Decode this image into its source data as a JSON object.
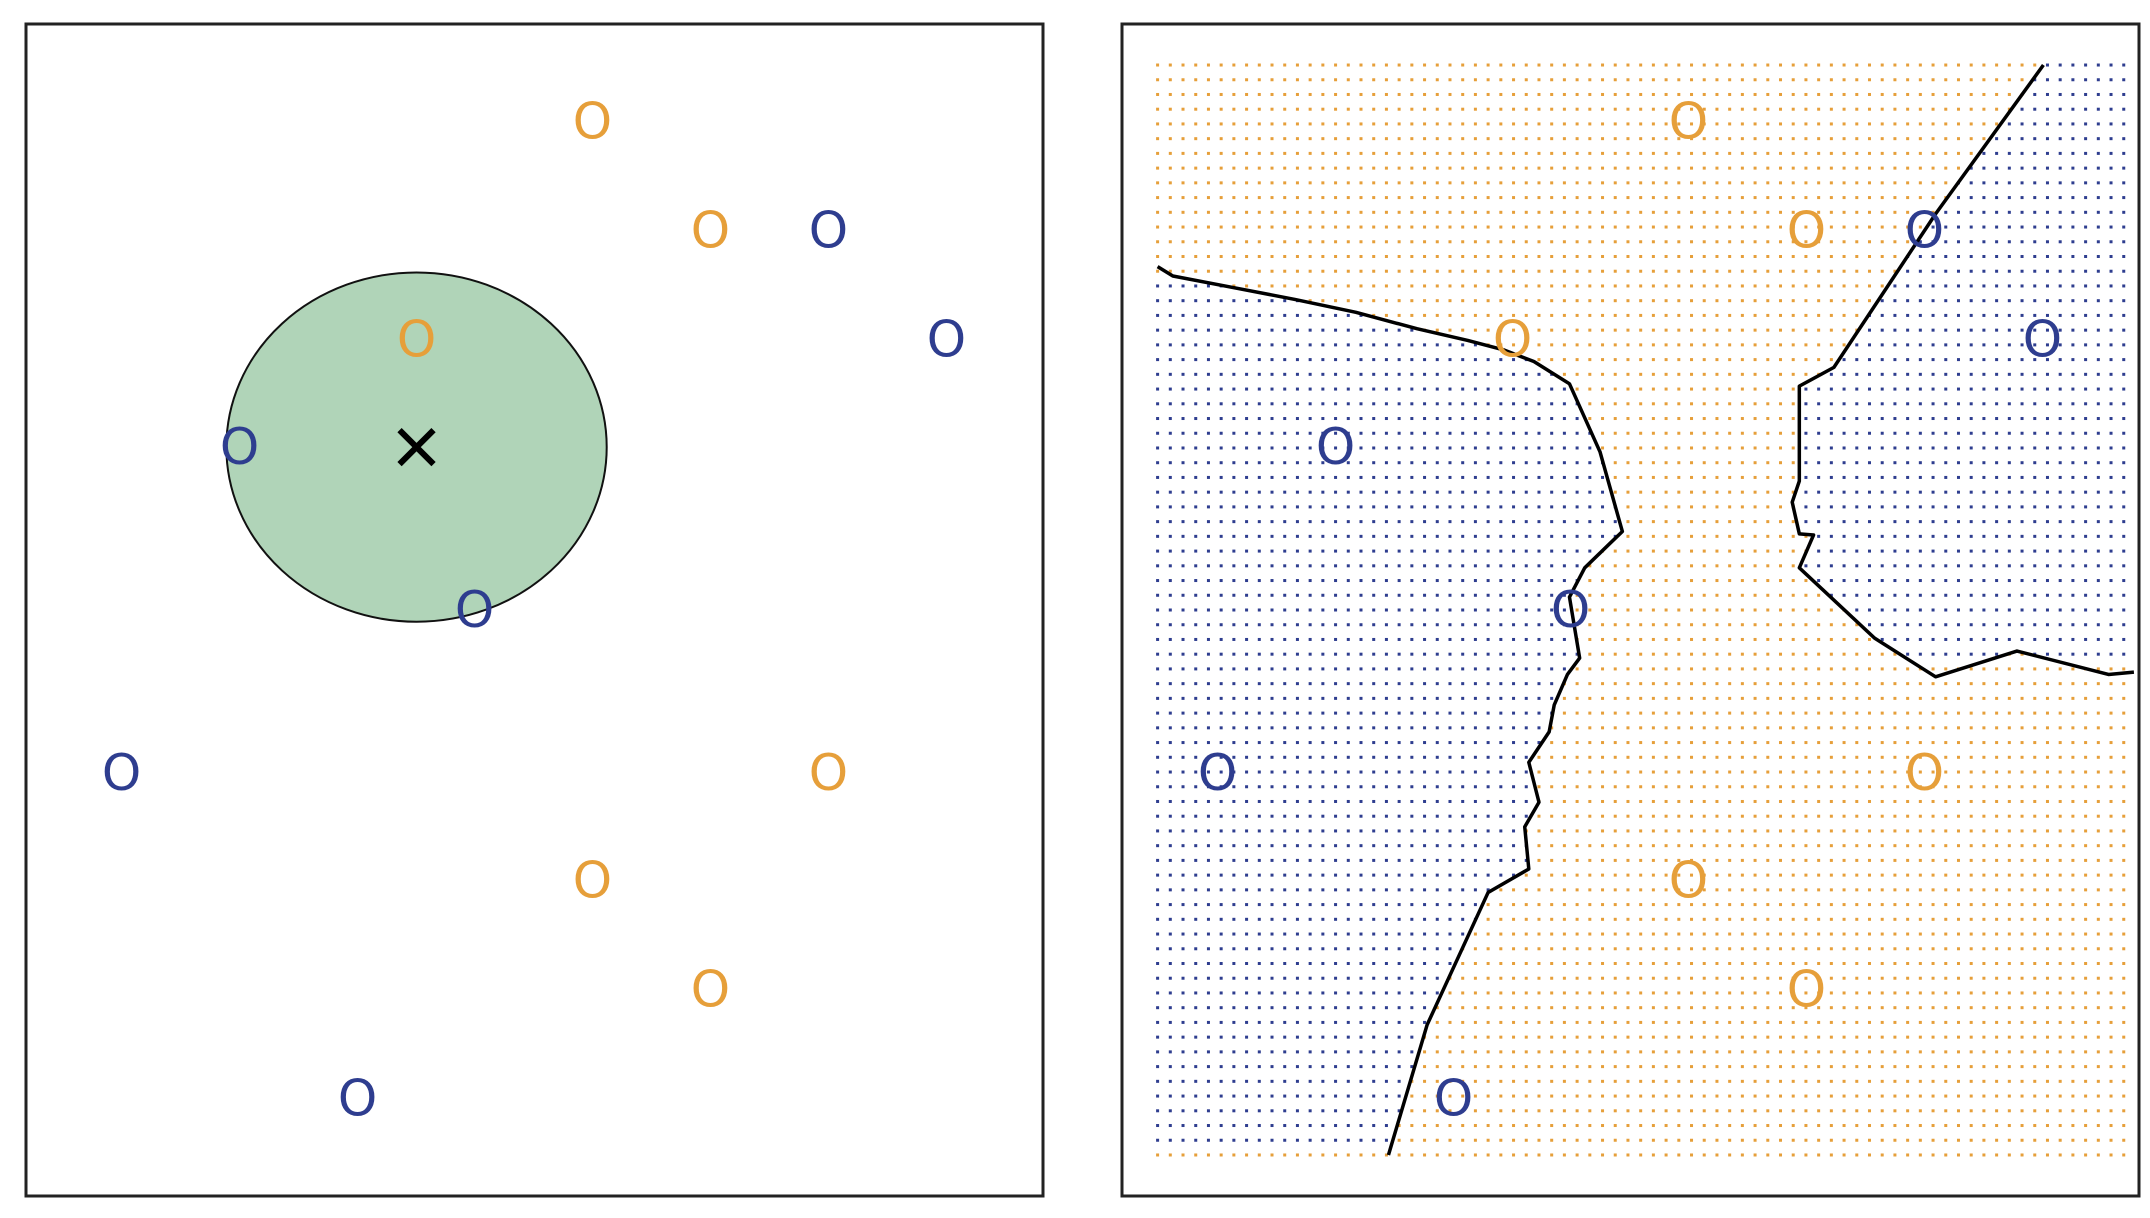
{
  "colors": {
    "orange": "#E69F3A",
    "blue": "#2E3D8F",
    "green_fill": "#B0D4B8",
    "boundary": "#000000"
  },
  "chart_data": [
    {
      "type": "scatter",
      "title": "",
      "xlim": [
        0,
        1
      ],
      "ylim": [
        0,
        1
      ],
      "grid": false,
      "marker_glyph": "O",
      "series": [
        {
          "class": "orange",
          "x": [
            0.557,
            0.673,
            0.384,
            0.789,
            0.557,
            0.673
          ],
          "y": [
            0.917,
            0.824,
            0.731,
            0.361,
            0.269,
            0.176
          ]
        },
        {
          "class": "blue",
          "x": [
            0.789,
            0.905,
            0.21,
            0.441,
            0.094,
            0.326
          ],
          "y": [
            0.824,
            0.731,
            0.639,
            0.5,
            0.361,
            0.083
          ]
        }
      ],
      "test_point": {
        "marker": "×",
        "x": 0.384,
        "y": 0.639
      },
      "neighborhood_circle": {
        "cx": 0.384,
        "cy": 0.639,
        "rx": 0.187,
        "ry": 0.149
      }
    },
    {
      "type": "scatter",
      "title": "",
      "xlim": [
        0,
        1
      ],
      "ylim": [
        0,
        1
      ],
      "grid": false,
      "marker_glyph": "O",
      "series": [
        {
          "class": "orange",
          "x": [
            0.557,
            0.673,
            0.384,
            0.789,
            0.557,
            0.673
          ],
          "y": [
            0.917,
            0.824,
            0.731,
            0.361,
            0.269,
            0.176
          ]
        },
        {
          "class": "blue",
          "x": [
            0.789,
            0.905,
            0.21,
            0.441,
            0.094,
            0.326
          ],
          "y": [
            0.824,
            0.731,
            0.639,
            0.5,
            0.361,
            0.083
          ]
        }
      ],
      "background_grid": "dotted class-region grid",
      "decision_boundaries": [
        {
          "x": [
            0.035,
            0.05,
            0.11,
            0.17,
            0.23,
            0.29,
            0.34,
            0.375,
            0.405,
            0.44,
            0.47,
            0.492,
            0.48,
            0.455,
            0.44,
            0.45,
            0.438,
            0.425,
            0.42,
            0.4,
            0.41,
            0.396,
            0.4,
            0.36,
            0.3,
            0.262
          ],
          "y": [
            0.793,
            0.785,
            0.775,
            0.765,
            0.754,
            0.74,
            0.73,
            0.722,
            0.712,
            0.693,
            0.635,
            0.567,
            0.557,
            0.536,
            0.511,
            0.459,
            0.445,
            0.419,
            0.396,
            0.37,
            0.336,
            0.315,
            0.279,
            0.259,
            0.146,
            0.035
          ]
        },
        {
          "x": [
            0.906,
            0.8,
            0.7,
            0.666,
            0.666,
            0.659,
            0.666,
            0.68,
            0.666,
            0.74,
            0.8,
            0.88,
            0.97,
            0.995
          ],
          "y": [
            0.965,
            0.838,
            0.707,
            0.691,
            0.61,
            0.592,
            0.565,
            0.564,
            0.536,
            0.476,
            0.443,
            0.465,
            0.445,
            0.447
          ]
        }
      ]
    }
  ]
}
